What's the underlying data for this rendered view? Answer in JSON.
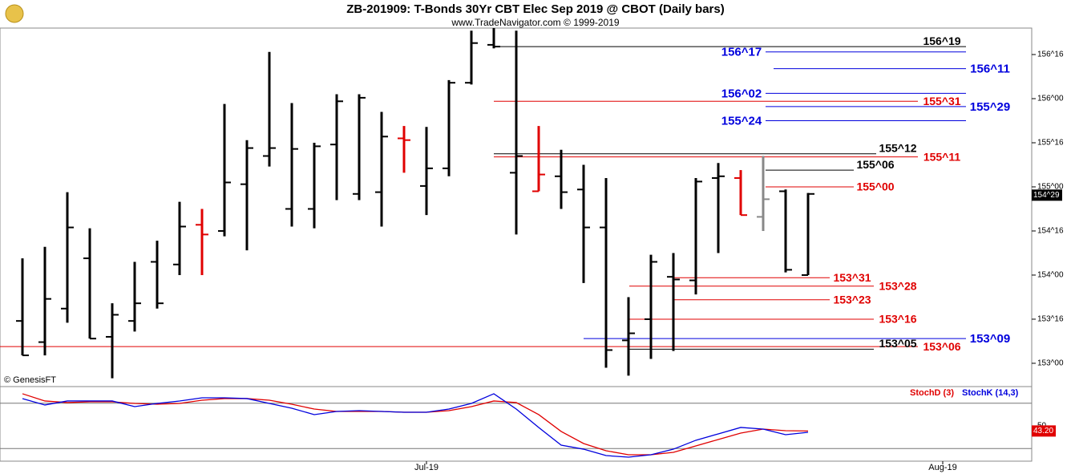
{
  "chart_data": {
    "type": "ohlc",
    "title": "ZB-201909:  T-Bonds 30Yr CBT Elec Sep 2019 @ CBOT  (Daily bars)",
    "subtitle": "www.TradeNavigator.com © 1999-2019",
    "source": "© GenesisFT",
    "open": [
      153.48,
      153.24,
      153.62,
      154.19,
      153.3,
      153.48,
      154.15,
      154.12,
      154.57,
      154.5,
      155.03,
      155.35,
      154.75,
      154.75,
      155.48,
      154.92,
      154.94,
      155.55,
      155.01,
      155.21,
      156.18,
      156.61,
      155.16,
      154.95,
      155.12,
      154.97,
      154.54,
      153.26,
      153.5,
      153.98,
      153.94,
      155.1,
      155.1,
      154.66,
      154.95,
      154.0
    ],
    "high": [
      154.19,
      154.32,
      154.94,
      154.53,
      153.68,
      154.15,
      154.39,
      154.83,
      154.75,
      155.94,
      155.53,
      156.53,
      155.95,
      155.5,
      156.05,
      156.05,
      155.85,
      155.69,
      155.68,
      156.21,
      156.77,
      156.8,
      156.77,
      155.69,
      155.42,
      155.25,
      155.1,
      153.75,
      154.23,
      154.25,
      155.1,
      155.27,
      155.19,
      155.35,
      154.97,
      154.93
    ],
    "low": [
      153.09,
      153.09,
      153.46,
      153.28,
      152.83,
      153.36,
      153.62,
      154.0,
      154.0,
      154.44,
      154.28,
      155.23,
      154.55,
      154.53,
      154.85,
      154.85,
      154.55,
      155.16,
      154.68,
      155.12,
      156.16,
      156.57,
      154.46,
      154.95,
      154.75,
      153.91,
      152.95,
      152.86,
      153.05,
      153.14,
      153.78,
      154.25,
      154.68,
      154.5,
      154.03,
      154.0
    ],
    "close": [
      153.09,
      153.73,
      154.54,
      153.28,
      153.55,
      153.68,
      153.68,
      154.55,
      154.46,
      155.05,
      155.44,
      155.44,
      155.43,
      155.46,
      155.97,
      156.01,
      155.57,
      155.53,
      155.21,
      156.18,
      156.63,
      156.59,
      155.35,
      155.14,
      154.94,
      154.54,
      153.15,
      153.34,
      154.15,
      153.95,
      155.06,
      155.12,
      154.68,
      154.86,
      154.06,
      154.92
    ],
    "colors": [
      "#000",
      "#000",
      "#000",
      "#000",
      "#000",
      "#000",
      "#000",
      "#000",
      "#e00000",
      "#000",
      "#000",
      "#000",
      "#000",
      "#000",
      "#000",
      "#000",
      "#000",
      "#e00000",
      "#000",
      "#000",
      "#000",
      "#000",
      "#000",
      "#e00000",
      "#000",
      "#000",
      "#000",
      "#000",
      "#000",
      "#000",
      "#000",
      "#000",
      "#e00000",
      "#888888",
      "#000",
      "#000"
    ],
    "xlim": [
      -1,
      46
    ],
    "xticks": [
      {
        "value": 18,
        "label": "Jul-19"
      },
      {
        "value": 41,
        "label": "Aug-19"
      }
    ],
    "ylim": [
      152.736,
      156.8
    ],
    "yticks": [
      {
        "value": 153,
        "label": "153^00"
      },
      {
        "value": 153.5,
        "label": "153^16"
      },
      {
        "value": 154,
        "label": "154^00"
      },
      {
        "value": 154.5,
        "label": "154^16"
      },
      {
        "value": 155,
        "label": "155^00"
      },
      {
        "value": 155.5,
        "label": "155^16"
      },
      {
        "value": 156,
        "label": "156^00"
      },
      {
        "value": 156.5,
        "label": "156^16"
      }
    ],
    "current": {
      "value": 154.906,
      "label": "154^29"
    },
    "levels": [
      {
        "value": 156.59,
        "label": "156^19",
        "color": "#000000"
      },
      {
        "value": 156.53,
        "label": "156^17",
        "color": "#0000dd"
      },
      {
        "value": 156.34,
        "label": "156^11",
        "color": "#0000dd"
      },
      {
        "value": 156.06,
        "label": "156^02",
        "color": "#0000dd"
      },
      {
        "value": 155.97,
        "label": "155^31",
        "color": "#e00000"
      },
      {
        "value": 155.91,
        "label": "155^29",
        "color": "#0000dd"
      },
      {
        "value": 155.75,
        "label": "155^24",
        "color": "#0000dd"
      },
      {
        "value": 155.375,
        "label": "155^12",
        "color": "#000000"
      },
      {
        "value": 155.34,
        "label": "155^11",
        "color": "#e00000"
      },
      {
        "value": 155.19,
        "label": "155^06",
        "color": "#000000"
      },
      {
        "value": 155.0,
        "label": "155^00",
        "color": "#e00000"
      },
      {
        "value": 153.97,
        "label": "153^31",
        "color": "#e00000"
      },
      {
        "value": 153.875,
        "label": "153^28",
        "color": "#e00000"
      },
      {
        "value": 153.72,
        "label": "153^23",
        "color": "#e00000"
      },
      {
        "value": 153.5,
        "label": "153^16",
        "color": "#e00000"
      },
      {
        "value": 153.28,
        "label": "153^09",
        "color": "#0000dd"
      },
      {
        "value": 153.19,
        "label": "153^06",
        "color": "#e00000"
      },
      {
        "value": 153.16,
        "label": "153^05",
        "color": "#000000"
      }
    ],
    "indicator": {
      "type": "line",
      "ylim": [
        3.2,
        102.1
      ],
      "yticks": [
        50
      ],
      "bands": [
        20,
        80
      ],
      "series": [
        {
          "name": "StochD (3)",
          "color": "#e00000",
          "values": [
            92.6,
            83.0,
            80.9,
            81.9,
            81.9,
            79.8,
            78.7,
            79.8,
            84.0,
            86.2,
            86.2,
            84.0,
            78.7,
            72.3,
            69.1,
            69.1,
            69.1,
            68.1,
            68.1,
            70.2,
            75.5,
            83.0,
            80.9,
            64.9,
            42.6,
            26.6,
            17.0,
            11.7,
            11.7,
            14.9,
            23.4,
            31.9,
            40.4,
            45.7,
            43.6,
            43.2
          ],
          "marker": {
            "value": 43.2,
            "label": "43.20"
          }
        },
        {
          "name": "StochK (14,3)",
          "color": "#0000dd",
          "values": [
            86.2,
            77.7,
            83.0,
            83.0,
            83.0,
            75.5,
            79.8,
            83.0,
            87.2,
            87.2,
            86.2,
            79.8,
            73.4,
            64.9,
            69.1,
            70.2,
            69.1,
            68.1,
            68.1,
            72.3,
            79.8,
            92.6,
            72.3,
            47.9,
            24.5,
            19.1,
            10.6,
            8.5,
            11.7,
            19.1,
            30.9,
            39.4,
            47.9,
            45.7,
            38.3,
            41.5
          ]
        }
      ]
    }
  }
}
